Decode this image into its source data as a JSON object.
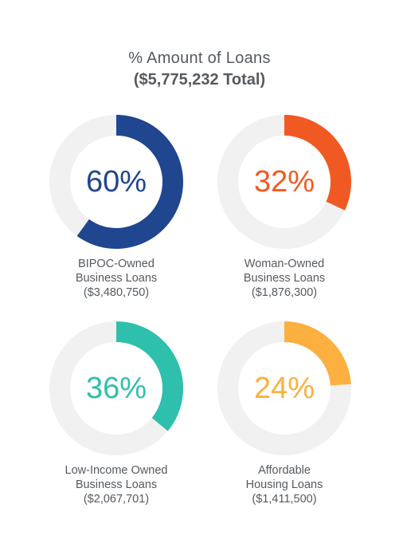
{
  "title": {
    "main": "% Amount of Loans",
    "sub": "($5,775,232 Total)"
  },
  "track_color": "#f1f1f1",
  "chart_data": [
    {
      "type": "donut",
      "value_percent": 60,
      "label": "60%",
      "category_line1": "BIPOC-Owned",
      "category_line2": "Business Loans",
      "amount": "($3,480,750)",
      "color": "#1f468f"
    },
    {
      "type": "donut",
      "value_percent": 32,
      "label": "32%",
      "category_line1": "Woman-Owned",
      "category_line2": "Business Loans",
      "amount": "($1,876,300)",
      "color": "#f05a22"
    },
    {
      "type": "donut",
      "value_percent": 36,
      "label": "36%",
      "category_line1": "Low-Income Owned",
      "category_line2": "Business Loans",
      "amount": "($2,067,701)",
      "color": "#2fbfad"
    },
    {
      "type": "donut",
      "value_percent": 24,
      "label": "24%",
      "category_line1": "Affordable",
      "category_line2": "Housing Loans",
      "amount": "($1,411,500)",
      "color": "#fbb040"
    }
  ]
}
